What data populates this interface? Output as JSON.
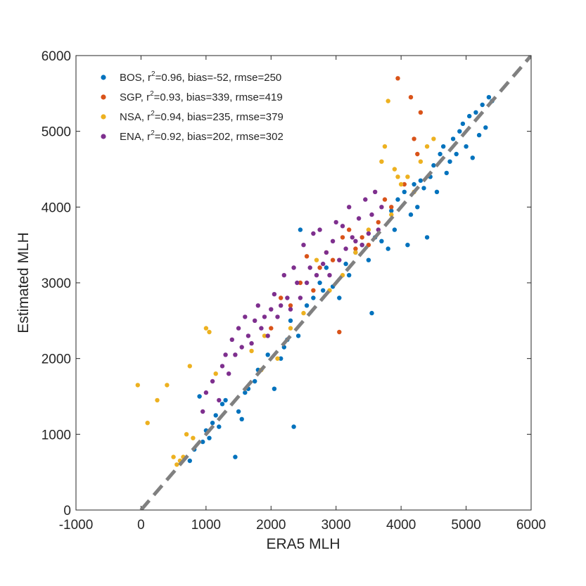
{
  "chart_data": {
    "type": "scatter",
    "title": "",
    "xlabel": "ERA5 MLH",
    "ylabel": "Estimated MLH",
    "xlim": [
      -1000,
      6000
    ],
    "ylim": [
      0,
      6000
    ],
    "xticks": [
      -1000,
      0,
      1000,
      2000,
      3000,
      4000,
      5000,
      6000
    ],
    "yticks": [
      0,
      1000,
      2000,
      3000,
      4000,
      5000,
      6000
    ],
    "xtick_labels": [
      "-1000",
      "0",
      "1000",
      "2000",
      "3000",
      "4000",
      "5000",
      "6000"
    ],
    "ytick_labels": [
      "0",
      "1000",
      "2000",
      "3000",
      "4000",
      "5000",
      "6000"
    ],
    "grid": false,
    "legend_position": "top-left",
    "reference_line": {
      "style": "dashed",
      "color": "#808080",
      "x": [
        0,
        6000
      ],
      "y": [
        0,
        6000
      ]
    },
    "series": [
      {
        "name": "BOS",
        "label_parts": [
          "BOS, r",
          "2",
          "=0.96, bias=-52, rmse=250"
        ],
        "color": "#0072BD",
        "x": [
          750,
          820,
          900,
          950,
          1000,
          1050,
          1100,
          1150,
          1200,
          1250,
          1300,
          1450,
          1500,
          1550,
          1600,
          1650,
          1750,
          1800,
          1950,
          2050,
          2150,
          2200,
          2250,
          2300,
          2350,
          2420,
          2450,
          2550,
          2650,
          2750,
          2800,
          2850,
          2950,
          3050,
          3150,
          3200,
          3300,
          3400,
          3500,
          3550,
          3600,
          3700,
          3800,
          3850,
          3900,
          3950,
          4050,
          4100,
          4150,
          4200,
          4250,
          4300,
          4350,
          4400,
          4450,
          4500,
          4550,
          4600,
          4650,
          4700,
          4750,
          4800,
          4850,
          4900,
          4950,
          5000,
          5050,
          5100,
          5150,
          5200,
          5250,
          5300,
          5350,
          5400
        ],
        "y": [
          650,
          800,
          1500,
          900,
          1050,
          950,
          1150,
          1250,
          1100,
          1400,
          1450,
          700,
          1300,
          1200,
          1550,
          1600,
          1700,
          1850,
          2050,
          1600,
          2000,
          2150,
          2250,
          2500,
          1100,
          2300,
          3700,
          2700,
          2800,
          3000,
          2900,
          3200,
          2950,
          2800,
          3250,
          3100,
          3400,
          3500,
          3300,
          2600,
          3600,
          3550,
          3450,
          3950,
          3700,
          4100,
          4200,
          3500,
          3900,
          4300,
          4000,
          4350,
          4250,
          3600,
          4400,
          4550,
          4200,
          4700,
          4800,
          4450,
          4600,
          4900,
          4700,
          5000,
          5100,
          4800,
          5200,
          4650,
          5250,
          4950,
          5350,
          5050,
          5450,
          5400
        ]
      },
      {
        "name": "SGP",
        "label_parts": [
          "SGP, r",
          "2",
          "=0.93, bias=339, rmse=419"
        ],
        "color": "#D95319",
        "x": [
          2000,
          2150,
          2300,
          2450,
          2550,
          2650,
          2750,
          2850,
          2950,
          3050,
          3100,
          3200,
          3300,
          3400,
          3500,
          3650,
          3750,
          3850,
          3950,
          4050,
          4150,
          4200,
          4250,
          4300
        ],
        "y": [
          2400,
          2800,
          2700,
          3000,
          3350,
          2900,
          3200,
          3400,
          3300,
          2350,
          3600,
          3700,
          3450,
          3600,
          3500,
          3800,
          4100,
          4000,
          5700,
          4300,
          5450,
          4900,
          4700,
          5250
        ]
      },
      {
        "name": "NSA",
        "label_parts": [
          "NSA, r",
          "2",
          "=0.94, bias=235, rmse=379"
        ],
        "color": "#EDB120",
        "x": [
          -50,
          100,
          250,
          400,
          500,
          550,
          600,
          650,
          700,
          750,
          800,
          1000,
          1050,
          1150,
          1700,
          1850,
          1900,
          2100,
          2300,
          2500,
          2700,
          2900,
          3100,
          3300,
          3500,
          3700,
          3750,
          3800,
          3850,
          3900,
          3950,
          4000,
          4100,
          4200,
          4300,
          4400,
          4500
        ],
        "y": [
          1650,
          1150,
          1450,
          1650,
          700,
          600,
          650,
          700,
          1000,
          1900,
          950,
          2400,
          2350,
          1800,
          2100,
          1850,
          2300,
          2000,
          2400,
          2600,
          3300,
          2900,
          3100,
          3400,
          3700,
          4600,
          4800,
          5400,
          3900,
          4500,
          4400,
          4300,
          4400,
          4200,
          4600,
          4800,
          4900
        ]
      },
      {
        "name": "ENA",
        "label_parts": [
          "ENA, r",
          "2",
          "=0.92, bias=202, rmse=302"
        ],
        "color": "#7E2F8E",
        "x": [
          950,
          1000,
          1100,
          1200,
          1250,
          1300,
          1350,
          1400,
          1450,
          1500,
          1550,
          1600,
          1650,
          1700,
          1750,
          1800,
          1850,
          1900,
          1950,
          2000,
          2050,
          2100,
          2150,
          2200,
          2250,
          2300,
          2350,
          2400,
          2450,
          2500,
          2550,
          2600,
          2650,
          2700,
          2750,
          2800,
          2850,
          2900,
          2950,
          3000,
          3050,
          3100,
          3150,
          3200,
          3250,
          3300,
          3350,
          3400,
          3450,
          3500,
          3550,
          3600,
          3650,
          3700
        ],
        "y": [
          1300,
          1550,
          1700,
          1450,
          1900,
          2050,
          1800,
          2250,
          2050,
          2400,
          2150,
          2550,
          2300,
          2200,
          2500,
          2700,
          2400,
          2550,
          2300,
          2650,
          2850,
          2550,
          2700,
          3100,
          2800,
          2650,
          3200,
          3000,
          2800,
          3500,
          3000,
          3200,
          3650,
          3100,
          3700,
          3250,
          3400,
          3100,
          3550,
          3800,
          3300,
          3750,
          3450,
          4000,
          3600,
          3550,
          3850,
          3500,
          4100,
          3650,
          3900,
          4200,
          3700,
          4000
        ]
      }
    ]
  }
}
